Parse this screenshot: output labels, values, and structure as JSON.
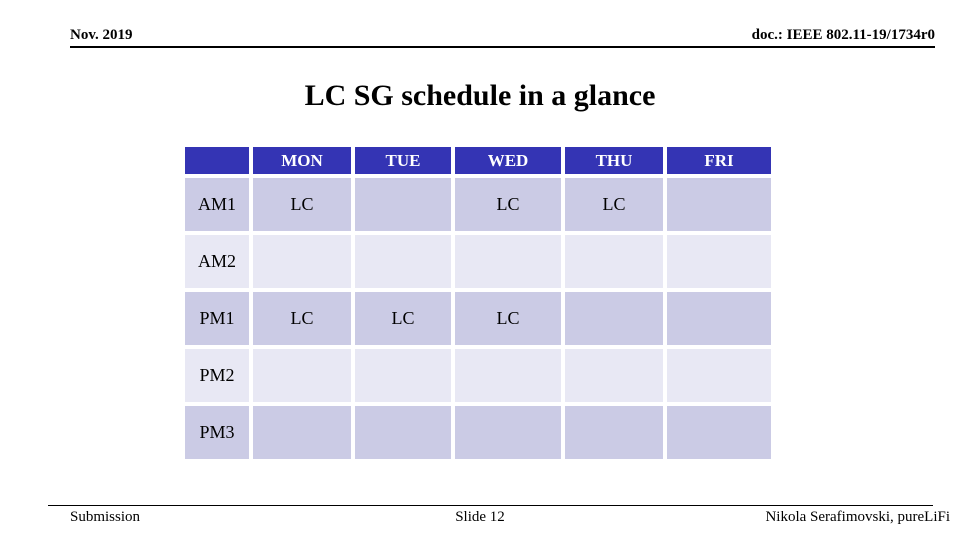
{
  "header": {
    "date": "Nov. 2019",
    "doc": "doc.: IEEE 802.11-19/1734r0"
  },
  "title": "LC SG schedule in a glance",
  "table": {
    "columns": [
      "",
      "MON",
      "TUE",
      "WED",
      "THU",
      "FRI"
    ],
    "rows": [
      {
        "label": "AM1",
        "cells": [
          "LC",
          "",
          "LC",
          "LC",
          ""
        ]
      },
      {
        "label": "AM2",
        "cells": [
          "",
          "",
          "",
          "",
          ""
        ]
      },
      {
        "label": "PM1",
        "cells": [
          "LC",
          "LC",
          "LC",
          "",
          ""
        ]
      },
      {
        "label": "PM2",
        "cells": [
          "",
          "",
          "",
          "",
          ""
        ]
      },
      {
        "label": "PM3",
        "cells": [
          "",
          "",
          "",
          "",
          ""
        ]
      }
    ]
  },
  "footer": {
    "left": "Submission",
    "center": "Slide 12",
    "right": "Nikola Serafimovski, pureLiFi"
  },
  "colors": {
    "header_bg": "#3434B4",
    "header_text": "#FFFFFF",
    "row_dark": "#CBCBE5",
    "row_light": "#E8E8F4",
    "text": "#000000"
  }
}
